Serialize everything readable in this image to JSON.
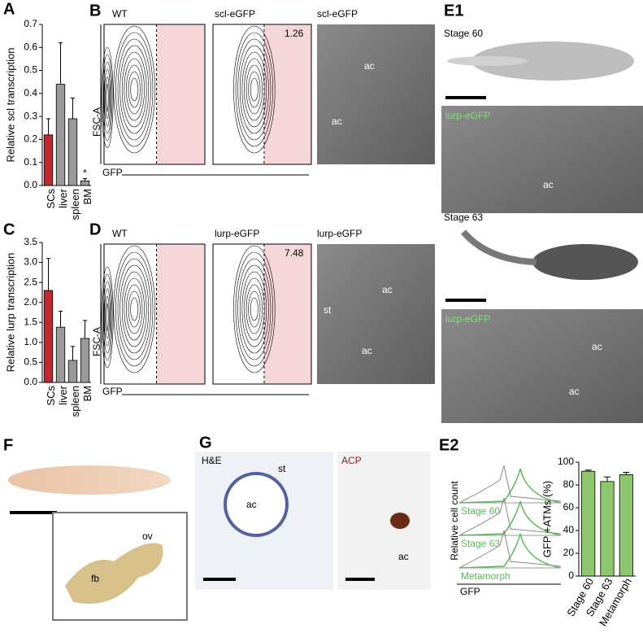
{
  "panel_labels": [
    "A",
    "B",
    "C",
    "D",
    "E1",
    "F",
    "G",
    "E2"
  ],
  "flow": {
    "axis_y": "FSC-A",
    "axis_x": "GFP",
    "B": {
      "left": "WT",
      "right": "scl-eGFP",
      "image": "scl-eGFP",
      "percent": 1.26,
      "image_labels": [
        "ac",
        "ac"
      ]
    },
    "D": {
      "left": "WT",
      "right": "lurp-eGFP",
      "image": "lurp-eGFP",
      "percent": 7.48,
      "image_labels": [
        "ac",
        "st",
        "ac"
      ]
    }
  },
  "E1": {
    "stage_top": "Stage 60",
    "micro_top": "lurp-eGFP",
    "micro_top_labels": [
      "ac"
    ],
    "stage_bottom": "Stage 63",
    "micro_bottom": "lurp-eGFP",
    "micro_bottom_labels": [
      "ac",
      "ac"
    ]
  },
  "F": {
    "labels": [
      "ov",
      "fb"
    ]
  },
  "G": {
    "left": "H&E",
    "left_labels": [
      "st",
      "ac"
    ],
    "right": "ACP",
    "right_labels": [
      "ac"
    ]
  },
  "E2_histogram": {
    "ylabel": "Relative cell count",
    "xlabel": "GFP",
    "stages": [
      "Stage 60",
      "Stage 63",
      "Metamorph"
    ]
  },
  "chart_data": [
    {
      "type": "bar",
      "ylabel": "Relative scl transcription",
      "categories": [
        "SCs",
        "liver",
        "spleen",
        "BM"
      ],
      "values": [
        0.22,
        0.44,
        0.29,
        0.02
      ],
      "errors": [
        0.07,
        0.18,
        0.09,
        0.01
      ],
      "colors": [
        "#c1272d",
        "#999999",
        "#999999",
        "#999999"
      ],
      "ylim": [
        0,
        0.7
      ],
      "yticks": [
        {
          "value": 0,
          "label": "0.0"
        },
        0.1,
        0.2,
        0.3,
        0.4,
        0.5,
        0.6,
        0.7
      ],
      "annotation": "*"
    },
    {
      "type": "bar",
      "ylabel": "Relative lurp transcription",
      "categories": [
        "SCs",
        "liver",
        "spleen",
        "BM"
      ],
      "values": [
        2.3,
        1.38,
        0.55,
        1.1
      ],
      "errors": [
        0.8,
        0.4,
        0.35,
        0.45
      ],
      "colors": [
        "#c1272d",
        "#999999",
        "#999999",
        "#999999"
      ],
      "ylim": [
        0,
        3.5
      ],
      "yticks": [
        {
          "value": 0,
          "label": "0.0"
        },
        0.5,
        {
          "value": 1,
          "label": "1.0"
        },
        1.5,
        {
          "value": 2,
          "label": "2.0"
        },
        2.5,
        {
          "value": 3,
          "label": "3.0"
        },
        3.5
      ]
    },
    {
      "type": "bar",
      "ylabel": "GFP +ATMs (%)",
      "categories": [
        "Stage 60",
        "Stage 63",
        "Metamorph"
      ],
      "values": [
        92,
        83,
        89
      ],
      "errors": [
        1,
        4,
        2
      ],
      "colors": [
        "#8dc86e",
        "#8dc86e",
        "#8dc86e"
      ],
      "ylim": [
        0,
        100
      ],
      "yticks": [
        0,
        20,
        40,
        60,
        80,
        100
      ]
    }
  ]
}
